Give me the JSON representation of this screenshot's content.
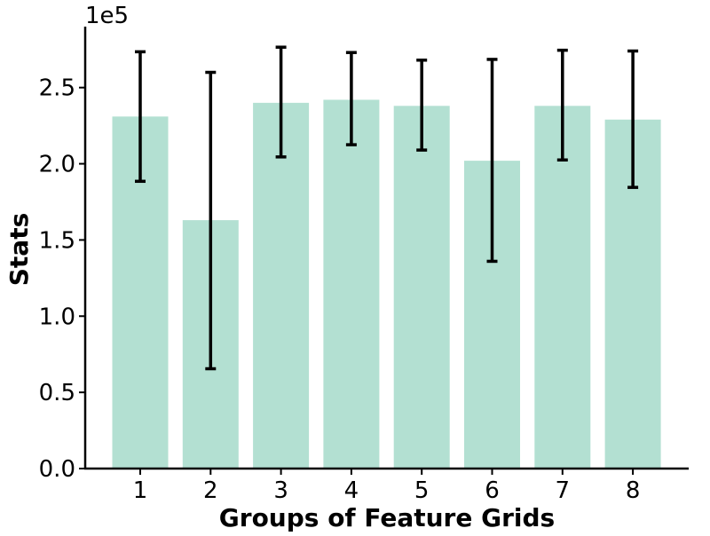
{
  "chart_data": {
    "type": "bar",
    "categories": [
      "1",
      "2",
      "3",
      "4",
      "5",
      "6",
      "7",
      "8"
    ],
    "values": [
      231000,
      163000,
      240000,
      242000,
      238000,
      202000,
      238000,
      229000
    ],
    "error_bars": [
      [
        188500,
        273500
      ],
      [
        65500,
        260000
      ],
      [
        204500,
        276500
      ],
      [
        212500,
        273000
      ],
      [
        209000,
        268000
      ],
      [
        136000,
        268500
      ],
      [
        202500,
        274500
      ],
      [
        184500,
        274000
      ]
    ],
    "xlabel": "Groups of Feature Grids",
    "ylabel": "Stats",
    "ylim": [
      0,
      290000
    ],
    "y_ticks": [
      0,
      50000,
      100000,
      150000,
      200000,
      250000
    ],
    "y_tick_labels": [
      "0.0",
      "0.5",
      "1.0",
      "1.5",
      "2.0",
      "2.5"
    ],
    "y_multiplier_label": "1e5",
    "bar_color": "#b3e0d2",
    "error_color": "#000000",
    "grid": false,
    "legend": false
  }
}
